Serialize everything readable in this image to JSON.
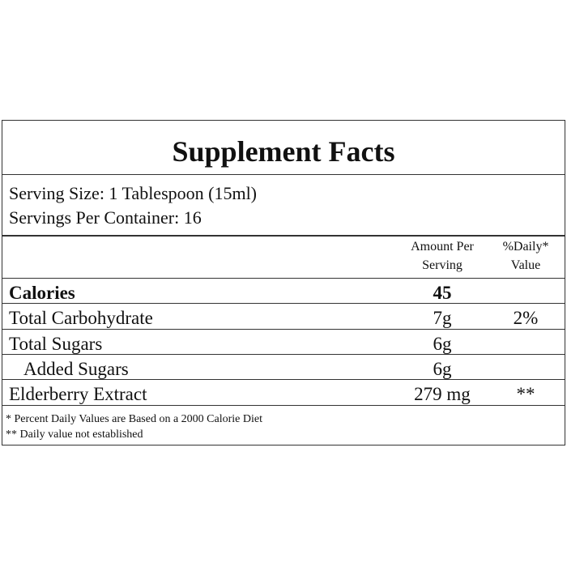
{
  "title": "Supplement Facts",
  "serving": {
    "size": "Serving Size: 1 Tablespoon (15ml)",
    "per_container": "Servings Per Container: 16"
  },
  "header": {
    "amount": [
      "Amount Per",
      "Serving"
    ],
    "daily_value": [
      "%Daily*",
      "Value"
    ]
  },
  "rows": [
    {
      "name": "Calories",
      "amount": "45"
    },
    {
      "name": "Total Carbohydrate",
      "amount": "7g",
      "daily_value": "2%"
    },
    {
      "name": "Total Sugars",
      "amount": "6g"
    },
    {
      "name": "Added Sugars",
      "amount": "6g"
    },
    {
      "name": "Elderberry Extract",
      "amount": "279 mg",
      "daily_value": "**"
    }
  ],
  "footnotes": [
    "* Percent Daily Values are Based on a 2000 Calorie Diet",
    "** Daily value not established"
  ]
}
